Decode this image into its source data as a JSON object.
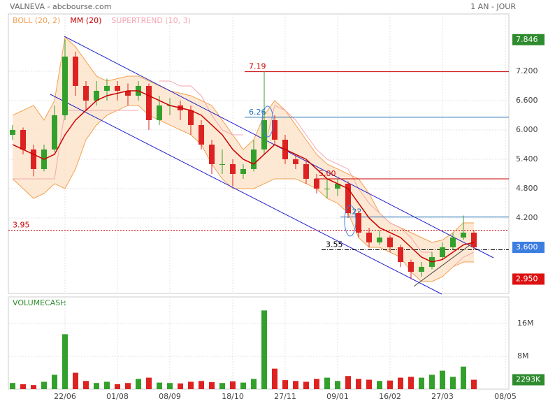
{
  "header": {
    "title": "VALNEVA - abcbourse.com",
    "period": "1 AN - JOUR"
  },
  "chart_data": [
    {
      "type": "candlestick",
      "legend": [
        {
          "name": "BOLL (20, 2)",
          "color": "#f0a050"
        },
        {
          "name": "MM (20)",
          "color": "#cc0000"
        },
        {
          "name": "SUPERTREND (10, 3)",
          "color": "#f4a6b0"
        }
      ],
      "categories": [
        null,
        null,
        null,
        null,
        null,
        "22/06",
        null,
        null,
        null,
        null,
        "01/08",
        null,
        null,
        null,
        null,
        "08/09",
        null,
        null,
        null,
        null,
        null,
        "18/10",
        null,
        null,
        null,
        null,
        "27/11",
        null,
        null,
        null,
        null,
        "09/01",
        null,
        null,
        null,
        null,
        "16/02",
        null,
        null,
        null,
        null,
        "27/03",
        null,
        null,
        null,
        null,
        null,
        "08/05"
      ],
      "ohlc": [
        [
          5.9,
          6.1,
          5.8,
          6.0
        ],
        [
          6.0,
          6.05,
          5.5,
          5.6
        ],
        [
          5.6,
          5.7,
          5.05,
          5.2
        ],
        [
          5.2,
          5.7,
          5.15,
          5.6
        ],
        [
          5.6,
          6.5,
          5.55,
          6.3
        ],
        [
          6.3,
          7.85,
          6.2,
          7.5
        ],
        [
          7.5,
          7.6,
          6.7,
          6.9
        ],
        [
          6.9,
          7.0,
          6.4,
          6.6
        ],
        [
          6.6,
          7.0,
          6.5,
          6.8
        ],
        [
          6.8,
          7.05,
          6.6,
          6.9
        ],
        [
          6.9,
          7.0,
          6.6,
          6.8
        ],
        [
          6.8,
          6.95,
          6.5,
          6.7
        ],
        [
          6.7,
          7.0,
          6.6,
          6.9
        ],
        [
          6.9,
          6.95,
          6.0,
          6.2
        ],
        [
          6.2,
          6.7,
          6.1,
          6.5
        ],
        [
          6.5,
          6.65,
          6.3,
          6.5
        ],
        [
          6.5,
          6.6,
          6.2,
          6.4
        ],
        [
          6.4,
          6.5,
          5.9,
          6.1
        ],
        [
          6.1,
          6.2,
          5.6,
          5.7
        ],
        [
          5.7,
          5.8,
          5.1,
          5.3
        ],
        [
          5.3,
          5.6,
          5.1,
          5.3
        ],
        [
          5.3,
          5.4,
          4.85,
          5.1
        ],
        [
          5.1,
          5.3,
          5.0,
          5.2
        ],
        [
          5.2,
          5.8,
          5.15,
          5.6
        ],
        [
          5.6,
          7.19,
          5.5,
          6.2
        ],
        [
          6.2,
          6.3,
          5.7,
          5.8
        ],
        [
          5.8,
          5.9,
          5.3,
          5.4
        ],
        [
          5.4,
          5.5,
          5.2,
          5.3
        ],
        [
          5.3,
          5.4,
          4.9,
          5.0
        ],
        [
          5.0,
          5.1,
          4.7,
          4.8
        ],
        [
          4.8,
          5.0,
          4.6,
          4.8
        ],
        [
          4.8,
          5.0,
          4.65,
          4.9
        ],
        [
          4.9,
          4.95,
          4.2,
          4.3
        ],
        [
          4.3,
          4.35,
          3.8,
          3.9
        ],
        [
          3.9,
          4.0,
          3.6,
          3.7
        ],
        [
          3.7,
          3.95,
          3.65,
          3.8
        ],
        [
          3.8,
          3.85,
          3.5,
          3.6
        ],
        [
          3.6,
          3.65,
          3.2,
          3.3
        ],
        [
          3.3,
          3.35,
          2.95,
          3.1
        ],
        [
          3.1,
          3.3,
          3.0,
          3.2
        ],
        [
          3.2,
          3.5,
          3.15,
          3.4
        ],
        [
          3.4,
          3.7,
          3.35,
          3.6
        ],
        [
          3.6,
          3.9,
          3.55,
          3.8
        ],
        [
          3.8,
          4.25,
          3.75,
          3.9
        ],
        [
          3.9,
          3.95,
          3.55,
          3.6
        ]
      ],
      "boll_upper": [
        6.3,
        6.4,
        6.5,
        6.2,
        6.6,
        7.9,
        7.7,
        7.4,
        7.1,
        7.0,
        7.05,
        7.1,
        7.1,
        7.0,
        6.9,
        6.8,
        6.75,
        6.7,
        6.6,
        6.5,
        6.2,
        5.9,
        5.6,
        5.8,
        6.3,
        6.6,
        6.4,
        6.1,
        5.8,
        5.5,
        5.3,
        5.2,
        5.1,
        5.0,
        4.7,
        4.3,
        4.1,
        4.0,
        3.9,
        3.8,
        3.7,
        3.75,
        3.9,
        4.1,
        4.1
      ],
      "boll_lower": [
        5.0,
        4.8,
        4.6,
        4.7,
        4.9,
        4.8,
        5.2,
        5.8,
        6.1,
        6.3,
        6.4,
        6.5,
        6.5,
        6.3,
        6.2,
        6.1,
        6.0,
        5.9,
        5.7,
        5.3,
        5.0,
        4.8,
        4.8,
        4.8,
        4.9,
        5.0,
        5.0,
        5.0,
        4.9,
        4.8,
        4.6,
        4.5,
        4.3,
        3.8,
        3.6,
        3.6,
        3.5,
        3.4,
        3.1,
        2.9,
        2.9,
        3.0,
        3.2,
        3.3,
        3.3
      ],
      "mm": [
        5.7,
        5.6,
        5.5,
        5.4,
        5.5,
        5.9,
        6.2,
        6.4,
        6.6,
        6.7,
        6.75,
        6.8,
        6.8,
        6.7,
        6.6,
        6.5,
        6.45,
        6.4,
        6.3,
        6.1,
        5.9,
        5.6,
        5.4,
        5.3,
        5.5,
        5.7,
        5.6,
        5.5,
        5.4,
        5.2,
        5.0,
        4.9,
        4.8,
        4.5,
        4.2,
        4.0,
        3.9,
        3.8,
        3.6,
        3.4,
        3.3,
        3.35,
        3.5,
        3.65,
        3.7
      ],
      "supertrend": [
        5.0,
        5.0,
        5.0,
        5.0,
        5.0,
        6.4,
        6.4,
        6.4,
        6.4,
        6.4,
        6.4,
        6.4,
        6.4,
        null,
        7.0,
        7.0,
        6.9,
        6.9,
        6.7,
        6.3,
        6.0,
        5.9,
        5.9,
        null,
        5.6,
        6.5,
        6.4,
        6.2,
        5.9,
        5.6,
        5.4,
        5.3,
        5.2,
        4.8,
        4.5,
        4.3,
        4.1,
        4.0,
        3.8,
        3.5,
        3.5,
        null,
        3.2,
        3.4,
        3.5
      ],
      "ylim": [
        2.657,
        8.371
      ],
      "yticks": [
        {
          "value": 4.2,
          "label": "4.200"
        },
        {
          "value": 4.8,
          "label": "4.800"
        },
        {
          "value": 5.4,
          "label": "5.400"
        },
        {
          "value": 6.0,
          "label": "6.000"
        },
        {
          "value": 6.6,
          "label": "6.600"
        },
        {
          "value": 7.2,
          "label": "7.200"
        }
      ],
      "levels": [
        {
          "value": 7.19,
          "color": "#cc0000"
        },
        {
          "value": 6.26,
          "color": "#1f6fb5"
        },
        {
          "value": 5.0,
          "label": "5.00",
          "color": "#cc0000"
        },
        {
          "value": 4.22,
          "color": "#1f6fb5"
        },
        {
          "value": 3.95,
          "color": "#cc0000"
        },
        {
          "value": 3.55,
          "color": "#000000"
        }
      ],
      "price_boxes": [
        {
          "value": 7.846,
          "label": "7.846",
          "color": "#2e8b2e"
        },
        {
          "value": 3.6,
          "label": "3.600",
          "color": "#3b7de0"
        },
        {
          "value": 2.95,
          "label": "2.950",
          "color": "#dd1111"
        }
      ],
      "up_color": "#33a02c",
      "down_color": "#dd2222",
      "grid": true
    },
    {
      "type": "bar",
      "title": "VOLUMECASH",
      "values": [
        1500000,
        1200000,
        1000000,
        1800000,
        3500000,
        13400000,
        4000000,
        2000000,
        1500000,
        1800000,
        1200000,
        1500000,
        2500000,
        2800000,
        1600000,
        1500000,
        1400000,
        1800000,
        2000000,
        1700000,
        1500000,
        1900000,
        1600000,
        2500000,
        19200000,
        5000000,
        2200000,
        2000000,
        1800000,
        2500000,
        2800000,
        2000000,
        3200000,
        2500000,
        2300000,
        2000000,
        2100000,
        2800000,
        3000000,
        2800000,
        3500000,
        4500000,
        3000000,
        5500000,
        2293000
      ],
      "ylim": [
        0,
        22500000
      ],
      "yticks": [
        {
          "value": 8000000,
          "label": "8M"
        },
        {
          "value": 16000000,
          "label": "16M"
        }
      ],
      "last_value": {
        "value": 2293000,
        "label": "2293K",
        "color": "#2e8b2e"
      },
      "grid": true
    }
  ]
}
